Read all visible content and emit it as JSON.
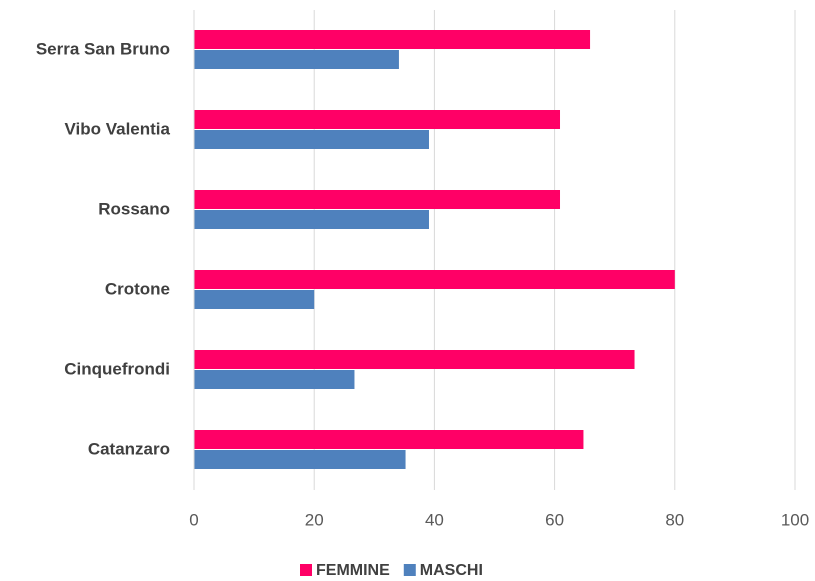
{
  "chart_data": {
    "type": "bar",
    "orientation": "horizontal",
    "categories": [
      "Serra San Bruno",
      "Vibo Valentia",
      "Rossano",
      "Crotone",
      "Cinquefrondi",
      "Catanzaro"
    ],
    "series": [
      {
        "name": "FEMMINE",
        "color": "#ff0066",
        "values": [
          65.9,
          60.9,
          60.9,
          80,
          73.3,
          64.8
        ]
      },
      {
        "name": "MASCHI",
        "color": "#4f81bd",
        "values": [
          34.1,
          39.1,
          39.1,
          20,
          26.7,
          35.2
        ]
      }
    ],
    "xlim": [
      0,
      100
    ],
    "xticks": [
      0,
      20,
      40,
      60,
      80,
      100
    ],
    "grid": true,
    "legend": "bottom"
  }
}
